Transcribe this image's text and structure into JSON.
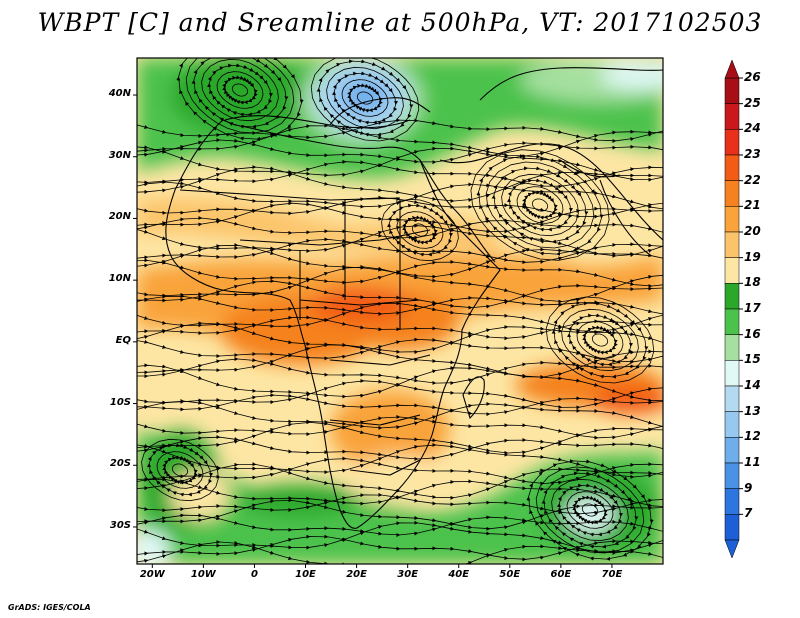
{
  "title": "WBPT [C] and Sreamline at 500hPa, VT: 2017102503",
  "credit": "GrADS: IGES/COLA",
  "map": {
    "lon_range": [
      -23,
      80
    ],
    "lat_range": [
      -36,
      46
    ],
    "lat_ticks": [
      {
        "value": 40,
        "label": "40N"
      },
      {
        "value": 30,
        "label": "30N"
      },
      {
        "value": 20,
        "label": "20N"
      },
      {
        "value": 10,
        "label": "10N"
      },
      {
        "value": 0,
        "label": "EQ"
      },
      {
        "value": -10,
        "label": "10S"
      },
      {
        "value": -20,
        "label": "20S"
      },
      {
        "value": -30,
        "label": "30S"
      }
    ],
    "lon_ticks": [
      {
        "value": -20,
        "label": "20W"
      },
      {
        "value": -10,
        "label": "10W"
      },
      {
        "value": 0,
        "label": "0"
      },
      {
        "value": 10,
        "label": "10E"
      },
      {
        "value": 20,
        "label": "20E"
      },
      {
        "value": 30,
        "label": "30E"
      },
      {
        "value": 40,
        "label": "40E"
      },
      {
        "value": 50,
        "label": "50E"
      },
      {
        "value": 60,
        "label": "60E"
      },
      {
        "value": 70,
        "label": "70E"
      }
    ]
  },
  "colorbar": {
    "levels": [
      {
        "label": "26",
        "color": "#a50f15"
      },
      {
        "label": "25",
        "color": "#cb181d"
      },
      {
        "label": "24",
        "color": "#e8301a"
      },
      {
        "label": "23",
        "color": "#f25c14"
      },
      {
        "label": "22",
        "color": "#f5821f"
      },
      {
        "label": "21",
        "color": "#f9a33a"
      },
      {
        "label": "20",
        "color": "#fcc46a"
      },
      {
        "label": "19",
        "color": "#fde6a4"
      },
      {
        "label": "18",
        "color": "#2ba82b"
      },
      {
        "label": "17",
        "color": "#4cc24c"
      },
      {
        "label": "16",
        "color": "#a6e0a0"
      },
      {
        "label": "15",
        "color": "#e0f8f6"
      },
      {
        "label": "14",
        "color": "#b4daf2"
      },
      {
        "label": "13",
        "color": "#96c8f0"
      },
      {
        "label": "12",
        "color": "#6eaeeb"
      },
      {
        "label": "11",
        "color": "#4a92e6"
      },
      {
        "label": "9",
        "color": "#2e76df"
      },
      {
        "label": "7",
        "color": "#1c5fd6"
      }
    ]
  }
}
